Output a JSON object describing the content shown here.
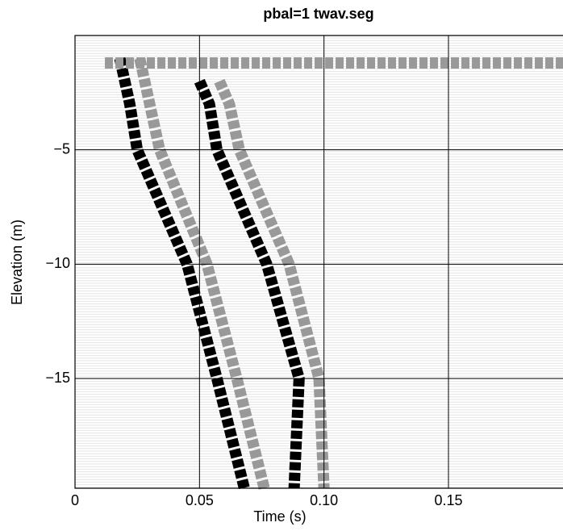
{
  "chart_data": {
    "type": "line",
    "title": "pbal=1 twav.seg",
    "x_label": "Time (s)",
    "y_label": "Elevation (m)",
    "xlim": [
      0,
      0.196
    ],
    "ylim": [
      -19.8,
      0
    ],
    "xticks": [
      0,
      {
        "value": 0.05,
        "label": "0.05"
      },
      {
        "value": 0.1,
        "label": "0.10"
      },
      {
        "value": 0.15,
        "label": "0.15"
      }
    ],
    "yticks": [
      {
        "value": -5,
        "label": "−5"
      },
      {
        "value": -10,
        "label": "−10"
      },
      {
        "value": -15,
        "label": "−15"
      }
    ],
    "grid": true,
    "series": [
      {
        "color": "#000000",
        "x": [
          0.018,
          0.022,
          0.025,
          0.045,
          0.057,
          0.068
        ],
        "values": [
          -1,
          -3,
          -5,
          -10,
          -15,
          -19.8
        ]
      },
      {
        "color": "#999999",
        "x": [
          0.026,
          0.03,
          0.034,
          0.053,
          0.065,
          0.076
        ],
        "values": [
          -1,
          -3,
          -5,
          -10,
          -15,
          -19.8
        ]
      },
      {
        "color": "#000000",
        "x": [
          0.05,
          0.054,
          0.057,
          0.077,
          0.09,
          0.088
        ],
        "values": [
          -2,
          -3,
          -5,
          -10,
          -15,
          -19.8
        ]
      },
      {
        "color": "#999999",
        "x": [
          0.058,
          0.062,
          0.066,
          0.086,
          0.098,
          0.1
        ],
        "values": [
          -2,
          -3,
          -5,
          -10,
          -15,
          -19.8
        ]
      },
      {
        "color": "#999999",
        "x": [
          0.012,
          0.05,
          0.1,
          0.15,
          0.196
        ],
        "values": [
          -1.2,
          -1.2,
          -1.2,
          -1.2,
          -1.2
        ]
      }
    ]
  }
}
